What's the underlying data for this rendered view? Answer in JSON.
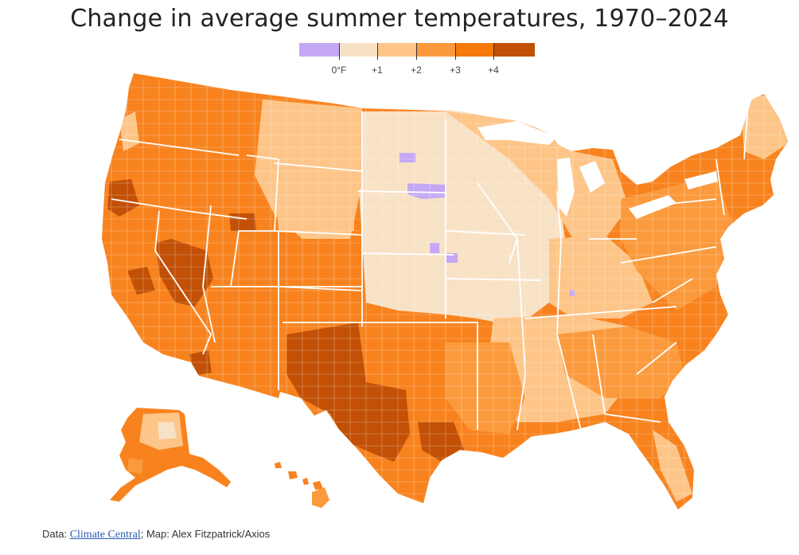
{
  "title": "Change in average summer temperatures, 1970–2024",
  "legend": {
    "swatch_colors": [
      "#c4a8f5",
      "#f8e2c6",
      "#fdc588",
      "#fb9a3c",
      "#f57a0a",
      "#c25006"
    ],
    "labels": [
      "0°F",
      "+1",
      "+2",
      "+3",
      "+4"
    ]
  },
  "map": {
    "subject": "Contiguous United States, Alaska and Hawaii by county",
    "colors": {
      "state_border": "#ffffff",
      "lake": "#ffffff"
    }
  },
  "footer": {
    "data_prefix": "Data: ",
    "source_link": "Climate Central",
    "credit": "; Map: Alex Fitzpatrick/Axios"
  }
}
